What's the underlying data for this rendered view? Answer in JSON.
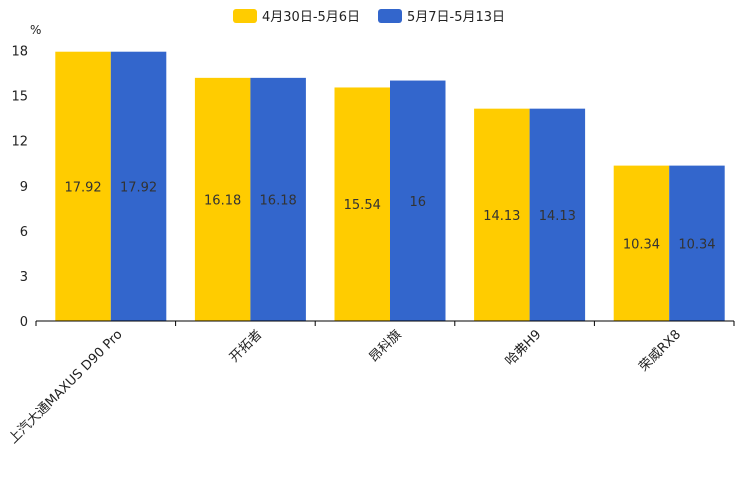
{
  "chart_data": {
    "type": "bar",
    "title": "",
    "xlabel": "",
    "ylabel": "%",
    "ylim": [
      0,
      18
    ],
    "yticks": [
      0,
      3,
      6,
      9,
      12,
      15,
      18
    ],
    "categories": [
      "上汽大通MAXUS D90 Pro",
      "开拓者",
      "昂科旗",
      "哈弗H9",
      "荣威RX8"
    ],
    "series": [
      {
        "name": "4月30日-5月6日",
        "color": "#FFCC00",
        "values": [
          17.92,
          16.18,
          15.54,
          14.13,
          10.34
        ]
      },
      {
        "name": "5月7日-5月13日",
        "color": "#3366CC",
        "values": [
          17.92,
          16.18,
          16,
          14.13,
          10.34
        ]
      }
    ],
    "legend_position": "top-center",
    "grid": false
  }
}
